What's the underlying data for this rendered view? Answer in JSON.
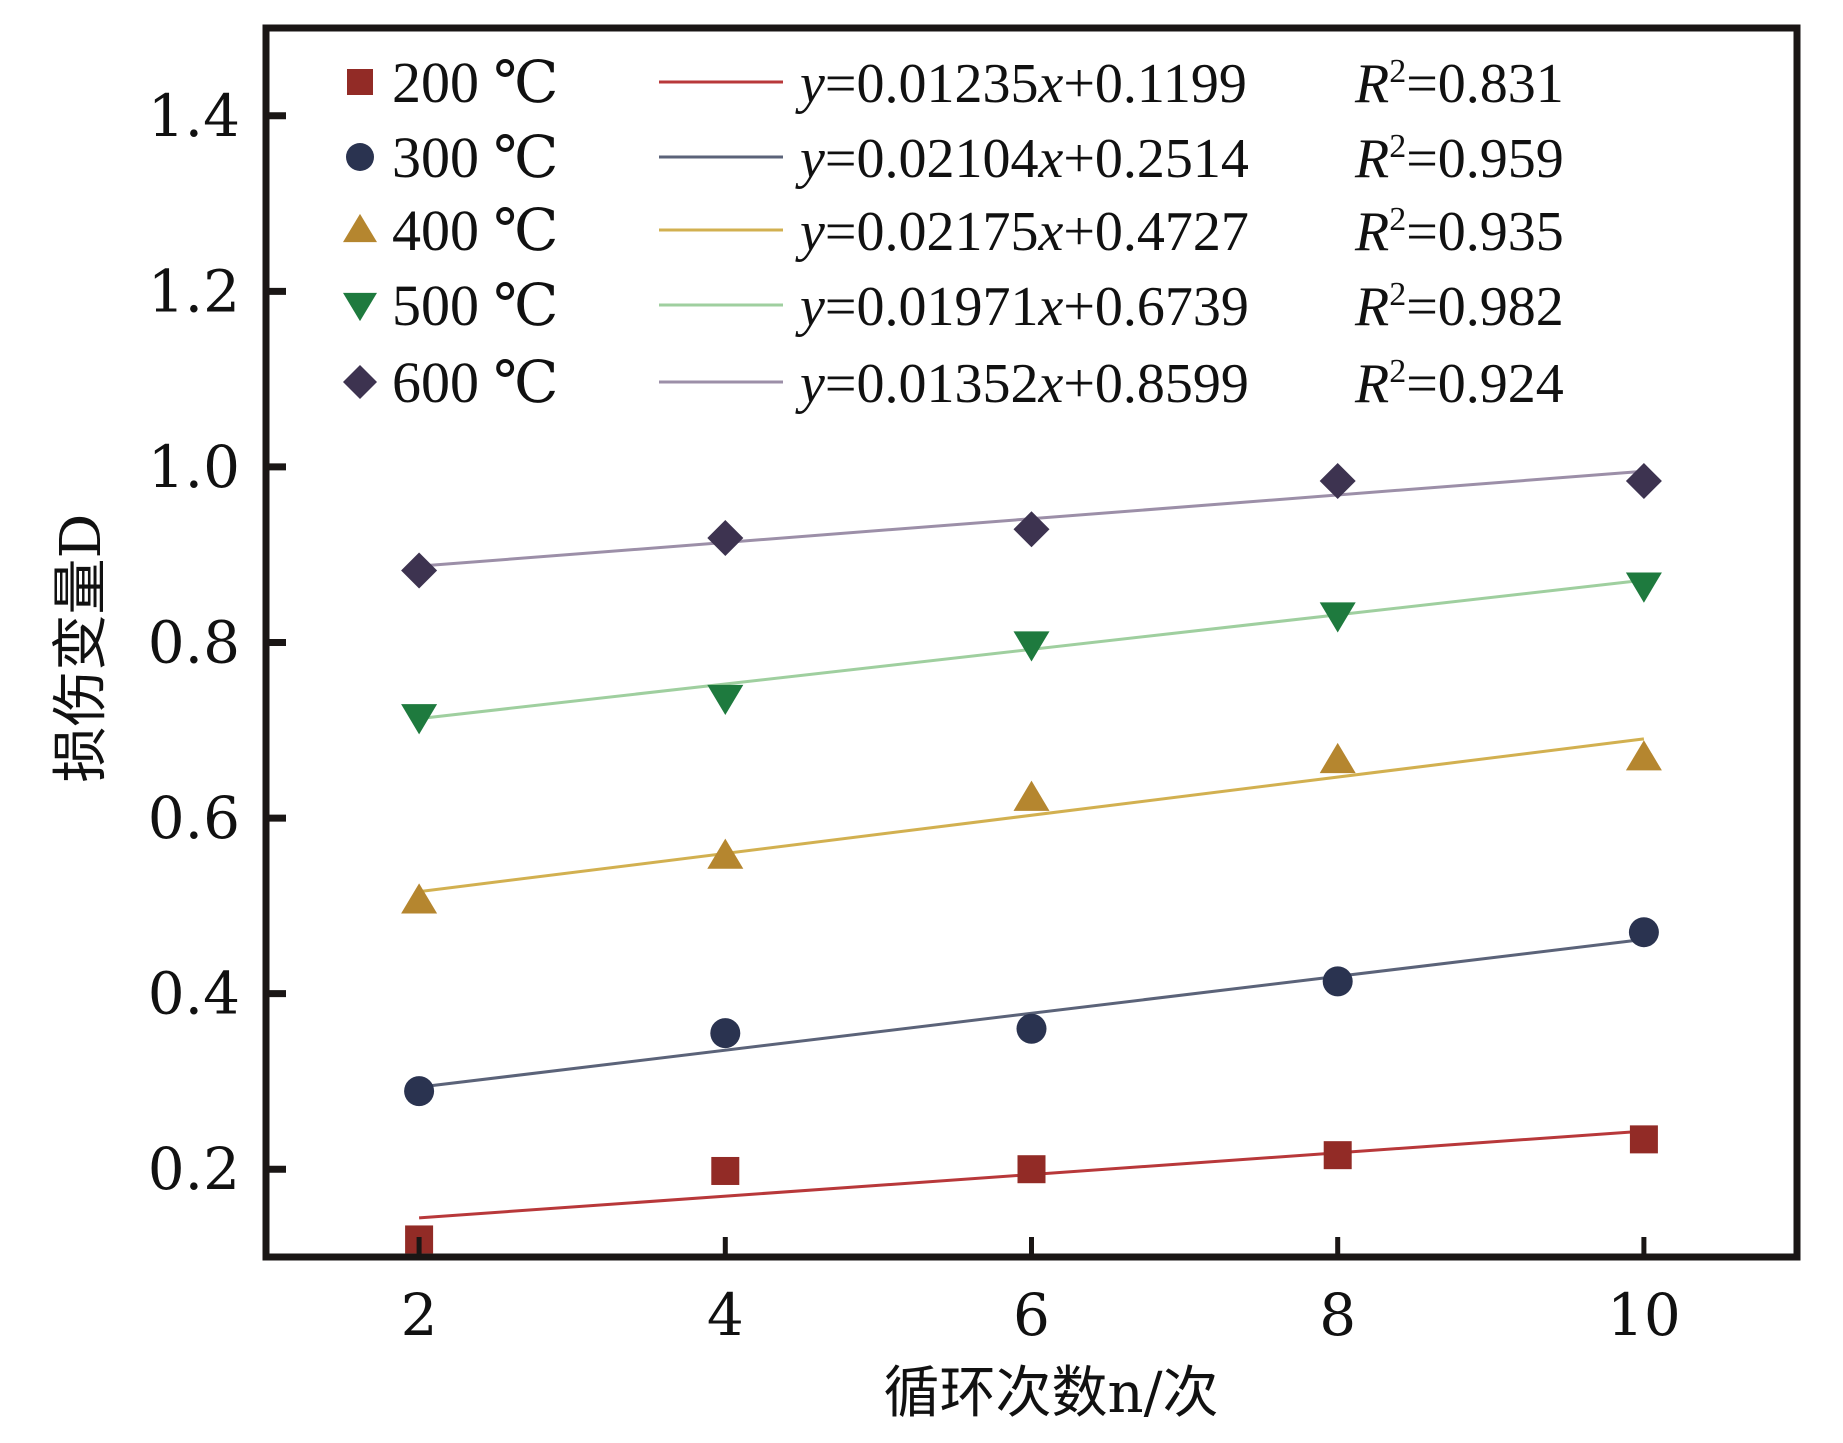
{
  "chart_data": {
    "type": "scatter",
    "title": "",
    "xlabel": "循环次数n/次",
    "ylabel": "损伤变量D",
    "xlim": [
      1,
      11
    ],
    "ylim": [
      0.1,
      1.5
    ],
    "x_ticks": [
      2,
      4,
      6,
      8,
      10
    ],
    "x_tick_labels": [
      "2",
      "4",
      "6",
      "8",
      "10"
    ],
    "y_ticks": [
      0.2,
      0.4,
      0.6,
      0.8,
      1.0,
      1.2,
      1.4
    ],
    "y_tick_labels": [
      "0.2",
      "0.4",
      "0.6",
      "0.8",
      "1.0",
      "1.2",
      "1.4"
    ],
    "grid": false,
    "legend_position": "top-left",
    "x": [
      2,
      4,
      6,
      8,
      10
    ],
    "series": [
      {
        "name": "200 ℃",
        "marker": "square",
        "color": "#922B26",
        "fit_color": "#B8383A",
        "values": [
          0.12,
          0.198,
          0.2,
          0.216,
          0.234
        ],
        "fit": {
          "slope": 0.01235,
          "intercept": 0.1199,
          "r2": "0.831",
          "equation_label": "y=0.01235x+0.1199",
          "r2_label": "R²=0.831"
        }
      },
      {
        "name": "300 ℃",
        "marker": "circle",
        "color": "#2A3350",
        "fit_color": "#5B6379",
        "values": [
          0.289,
          0.355,
          0.36,
          0.414,
          0.47
        ],
        "fit": {
          "slope": 0.02104,
          "intercept": 0.2514,
          "r2": "0.959",
          "equation_label": "y=0.02104x+0.2514",
          "r2_label": "R²=0.959"
        }
      },
      {
        "name": "400 ℃",
        "marker": "triangle-up",
        "color": "#B5862F",
        "fit_color": "#D2B050",
        "values": [
          0.506,
          0.557,
          0.623,
          0.666,
          0.669
        ],
        "fit": {
          "slope": 0.02175,
          "intercept": 0.4727,
          "r2": "0.935",
          "equation_label": "y=0.02175x+0.4727",
          "r2_label": "R²=0.935"
        }
      },
      {
        "name": "500 ℃",
        "marker": "triangle-down",
        "color": "#1E7A3E",
        "fit_color": "#9FCF9F",
        "values": [
          0.715,
          0.737,
          0.798,
          0.831,
          0.865
        ],
        "fit": {
          "slope": 0.01971,
          "intercept": 0.6739,
          "r2": "0.982",
          "equation_label": "y=0.01971x+0.6739",
          "r2_label": "R²=0.982"
        }
      },
      {
        "name": "600 ℃",
        "marker": "diamond",
        "color": "#3D3350",
        "fit_color": "#9C8FA8",
        "values": [
          0.882,
          0.919,
          0.929,
          0.984,
          0.984
        ],
        "fit": {
          "slope": 0.01352,
          "intercept": 0.8599,
          "r2": "0.924",
          "equation_label": "y=0.01352x+0.8599",
          "r2_label": "R²=0.924"
        }
      }
    ]
  }
}
